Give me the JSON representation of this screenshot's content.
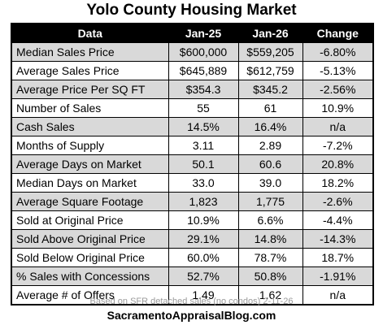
{
  "title": "Yolo County Housing Market",
  "headers": [
    "Data",
    "Jan-25",
    "Jan-26",
    "Change"
  ],
  "rows": [
    {
      "label": "Median Sales Price",
      "jan25": "$600,000",
      "jan26": "$559,205",
      "change": "-6.80%"
    },
    {
      "label": "Average Sales Price",
      "jan25": "$645,889",
      "jan26": "$612,759",
      "change": "-5.13%"
    },
    {
      "label": "Average Price Per SQ FT",
      "jan25": "$354.3",
      "jan26": "$345.2",
      "change": "-2.56%"
    },
    {
      "label": "Number of Sales",
      "jan25": "55",
      "jan26": "61",
      "change": "10.9%"
    },
    {
      "label": "Cash Sales",
      "jan25": "14.5%",
      "jan26": "16.4%",
      "change": "n/a"
    },
    {
      "label": "Months of Supply",
      "jan25": "3.11",
      "jan26": "2.89",
      "change": "-7.2%"
    },
    {
      "label": "Average Days on Market",
      "jan25": "50.1",
      "jan26": "60.6",
      "change": "20.8%"
    },
    {
      "label": "Median Days on Market",
      "jan25": "33.0",
      "jan26": "39.0",
      "change": "18.2%"
    },
    {
      "label": "Average Square Footage",
      "jan25": "1,823",
      "jan26": "1,775",
      "change": "-2.6%"
    },
    {
      "label": "Sold at Original Price",
      "jan25": "10.9%",
      "jan26": "6.6%",
      "change": "-4.4%"
    },
    {
      "label": "Sold Above Original Price",
      "jan25": "29.1%",
      "jan26": "14.8%",
      "change": "-14.3%"
    },
    {
      "label": "Sold Below Original Price",
      "jan25": "60.0%",
      "jan26": "78.7%",
      "change": "18.7%"
    },
    {
      "label": "% Sales with Concessions",
      "jan25": "52.7%",
      "jan26": "50.8%",
      "change": "-1.91%"
    },
    {
      "label": "Average # of Offers",
      "jan25": "1.49",
      "jan26": "1.62",
      "change": "n/a"
    }
  ],
  "footnote": "Based on SFR detached sales (no condos) 2-11-26",
  "site": "SacramentoAppraisalBlog.com",
  "colors": {
    "header_bg": "#000000",
    "header_text": "#ffffff",
    "shaded_row": "#d9d9d9",
    "footnote_text": "#9a9a9a"
  }
}
